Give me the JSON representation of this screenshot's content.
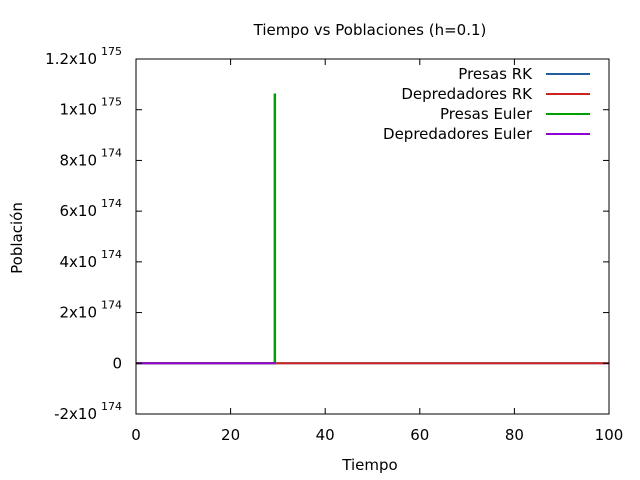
{
  "chart_data": {
    "type": "line",
    "title": "Tiempo vs Poblaciones (h=0.1)",
    "xlabel": "Tiempo",
    "ylabel": "Población",
    "xlim": [
      0,
      100
    ],
    "ylim": [
      -2e+174,
      1.2e+175
    ],
    "x_ticks": [
      {
        "value": 0,
        "label": "0"
      },
      {
        "value": 20,
        "label": "20"
      },
      {
        "value": 40,
        "label": "40"
      },
      {
        "value": 60,
        "label": "60"
      },
      {
        "value": 80,
        "label": "80"
      },
      {
        "value": 100,
        "label": "100"
      }
    ],
    "y_ticks": [
      {
        "value": -2e+174,
        "base": "-2x10",
        "exp": "174"
      },
      {
        "value": 0,
        "base": "0",
        "exp": ""
      },
      {
        "value": 2e+174,
        "base": "2x10",
        "exp": "174"
      },
      {
        "value": 4e+174,
        "base": "4x10",
        "exp": "174"
      },
      {
        "value": 6e+174,
        "base": "6x10",
        "exp": "174"
      },
      {
        "value": 8e+174,
        "base": "8x10",
        "exp": "174"
      },
      {
        "value": 1e+175,
        "base": "1x10",
        "exp": "175"
      },
      {
        "value": 1.2e+175,
        "base": "1.2x10",
        "exp": "175"
      }
    ],
    "grid": false,
    "legend_position": "top-right",
    "series": [
      {
        "name": "Presas RK",
        "color": "#1f5f9f",
        "x": [
          0,
          100
        ],
        "y": [
          0,
          0
        ]
      },
      {
        "name": "Depredadores RK",
        "color": "#cc2222",
        "x": [
          0,
          100
        ],
        "y": [
          0,
          0
        ]
      },
      {
        "name": "Presas Euler",
        "color": "#00a000",
        "x": [
          0,
          29.3,
          29.3,
          29.4,
          29.4
        ],
        "y": [
          0,
          0,
          1.06e+175,
          1.06e+175,
          -1e+172
        ]
      },
      {
        "name": "Depredadores Euler",
        "color": "#9400d3",
        "x": [
          0,
          29.5
        ],
        "y": [
          0,
          0
        ]
      }
    ]
  }
}
